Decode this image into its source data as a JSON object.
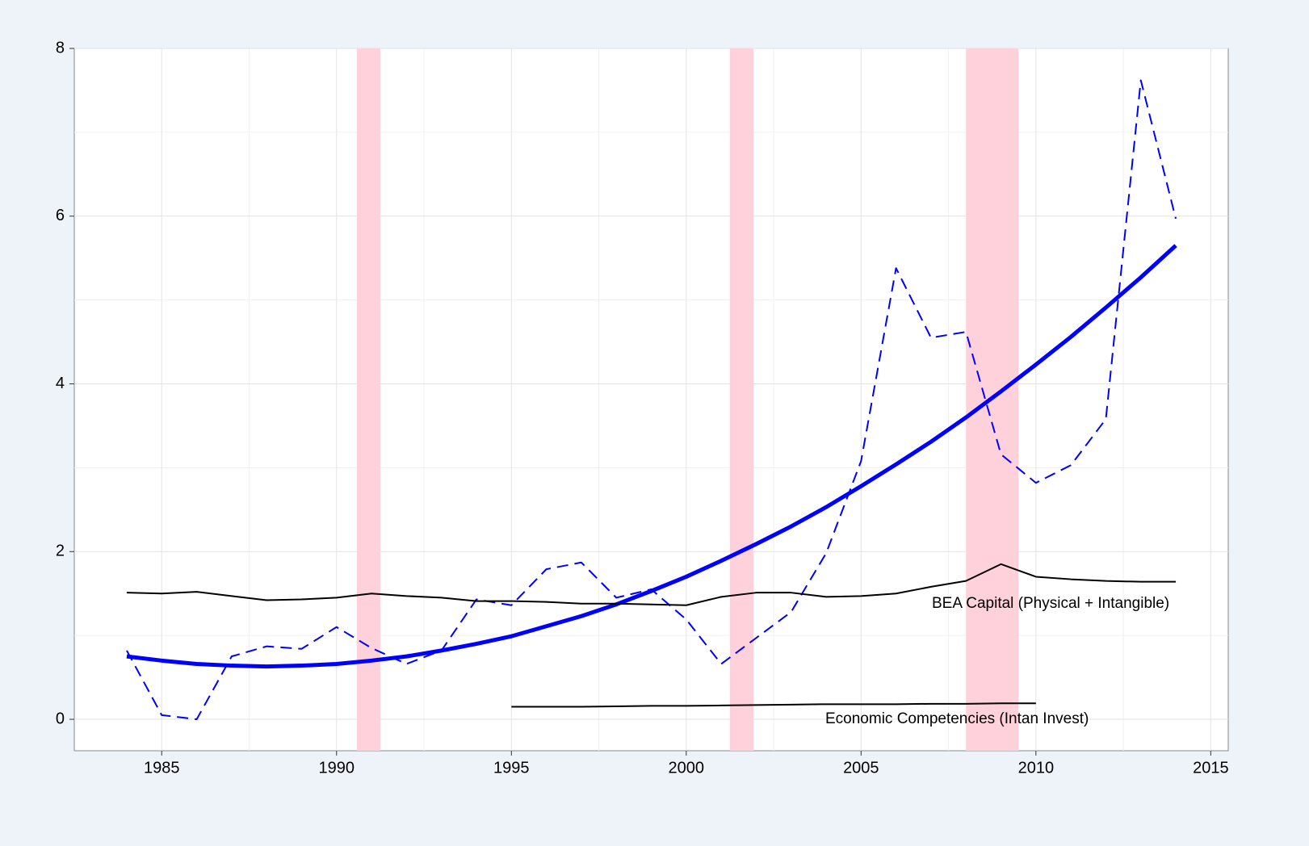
{
  "chart_data": {
    "type": "line",
    "xlim": [
      1982.5,
      2015.5
    ],
    "ylim": [
      -0.375,
      8
    ],
    "xticks": [
      1985,
      1990,
      1995,
      2000,
      2005,
      2010,
      2015
    ],
    "yticks": [
      0,
      2,
      4,
      6,
      8
    ],
    "grid": true,
    "shaded_regions": [
      [
        1990.58,
        1991.25
      ],
      [
        2001.25,
        2001.92
      ],
      [
        2008.0,
        2009.5
      ]
    ],
    "shade_color": "#ffd1da",
    "series": [
      {
        "style": "dashed",
        "color": "#0000ff",
        "x": [
          1984,
          1985,
          1986,
          1987,
          1988,
          1989,
          1990,
          1991,
          1992,
          1993,
          1994,
          1995,
          1996,
          1997,
          1998,
          1999,
          2000,
          2001,
          2002,
          2003,
          2004,
          2005,
          2006,
          2007,
          2008,
          2009,
          2010,
          2011,
          2012,
          2013,
          2014
        ],
        "values": [
          0.82,
          0.05,
          0.0,
          0.75,
          0.87,
          0.84,
          1.1,
          0.85,
          0.66,
          0.82,
          1.43,
          1.36,
          1.79,
          1.87,
          1.45,
          1.55,
          1.19,
          0.66,
          0.97,
          1.28,
          1.98,
          3.08,
          5.38,
          4.55,
          4.62,
          3.16,
          2.82,
          3.03,
          3.58,
          7.62,
          5.97
        ]
      },
      {
        "style": "thick",
        "color": "#0000ff",
        "x": [
          1984,
          1985,
          1986,
          1987,
          1988,
          1989,
          1990,
          1991,
          1992,
          1993,
          1994,
          1995,
          1996,
          1997,
          1998,
          1999,
          2000,
          2001,
          2002,
          2003,
          2004,
          2005,
          2006,
          2007,
          2008,
          2009,
          2010,
          2011,
          2012,
          2013,
          2014
        ],
        "values": [
          0.75,
          0.7,
          0.66,
          0.64,
          0.63,
          0.64,
          0.66,
          0.7,
          0.75,
          0.82,
          0.9,
          0.99,
          1.11,
          1.23,
          1.37,
          1.53,
          1.7,
          1.89,
          2.09,
          2.3,
          2.53,
          2.78,
          3.04,
          3.31,
          3.6,
          3.91,
          4.23,
          4.56,
          4.91,
          5.27,
          5.65
        ]
      },
      {
        "style": "solid",
        "color": "#000000",
        "x": [
          1984,
          1985,
          1986,
          1987,
          1988,
          1989,
          1990,
          1991,
          1992,
          1993,
          1994,
          1995,
          1996,
          1997,
          1998,
          1999,
          2000,
          2001,
          2002,
          2003,
          2004,
          2005,
          2006,
          2007,
          2008,
          2009,
          2010,
          2011,
          2012,
          2013,
          2014
        ],
        "values": [
          1.51,
          1.5,
          1.52,
          1.47,
          1.42,
          1.43,
          1.45,
          1.5,
          1.47,
          1.45,
          1.41,
          1.41,
          1.4,
          1.38,
          1.38,
          1.37,
          1.36,
          1.46,
          1.51,
          1.51,
          1.46,
          1.47,
          1.5,
          1.58,
          1.65,
          1.85,
          1.7,
          1.67,
          1.65,
          1.64,
          1.64
        ]
      },
      {
        "style": "solid",
        "color": "#000000",
        "x": [
          1995,
          1996,
          1997,
          1998,
          1999,
          2000,
          2001,
          2002,
          2003,
          2004,
          2005,
          2006,
          2007,
          2008,
          2009,
          2010
        ],
        "values": [
          0.15,
          0.15,
          0.15,
          0.155,
          0.16,
          0.16,
          0.165,
          0.17,
          0.175,
          0.18,
          0.18,
          0.18,
          0.185,
          0.185,
          0.19,
          0.19
        ]
      }
    ],
    "annotations": [
      "BEA Capital (Physical + Intangible)",
      "Economic Competencies (Intan Invest)"
    ]
  }
}
